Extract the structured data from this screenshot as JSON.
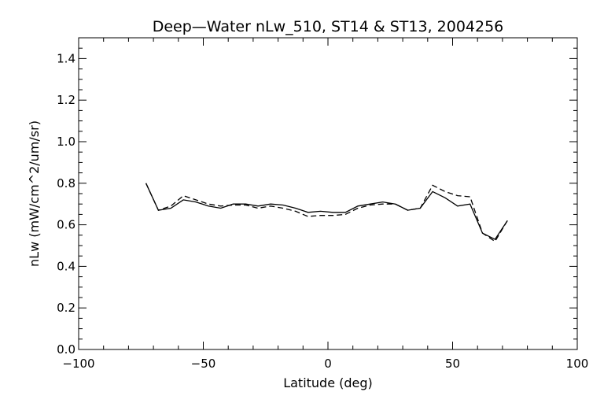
{
  "chart_data": {
    "type": "line",
    "title": "Deep—Water nLw_510, ST14 & ST13, 2004256",
    "xlabel": "Latitude (deg)",
    "ylabel": "nLw (mW/cm^2/um/sr)",
    "xlim": [
      -100,
      100
    ],
    "ylim": [
      0.0,
      1.5
    ],
    "xticks": [
      -100,
      -50,
      0,
      50,
      100
    ],
    "xtick_labels": [
      "−100",
      "−50",
      "0",
      "50",
      "100"
    ],
    "yticks": [
      0.0,
      0.2,
      0.4,
      0.6,
      0.8,
      1.0,
      1.2,
      1.4
    ],
    "ytick_labels": [
      "0.0",
      "0.2",
      "0.4",
      "0.6",
      "0.8",
      "1.0",
      "1.2",
      "1.4"
    ],
    "grid": false,
    "series": [
      {
        "style": "solid",
        "color": "#000000",
        "x": [
          -73,
          -68,
          -63,
          -58,
          -53,
          -48,
          -43,
          -38,
          -33,
          -28,
          -23,
          -18,
          -13,
          -8,
          -3,
          2,
          7,
          12,
          17,
          22,
          27,
          32,
          37,
          42,
          47,
          52,
          57,
          62,
          67,
          72
        ],
        "y": [
          0.8,
          0.67,
          0.68,
          0.72,
          0.71,
          0.69,
          0.68,
          0.7,
          0.7,
          0.69,
          0.7,
          0.695,
          0.68,
          0.66,
          0.665,
          0.66,
          0.66,
          0.69,
          0.7,
          0.71,
          0.7,
          0.67,
          0.68,
          0.76,
          0.73,
          0.69,
          0.7,
          0.56,
          0.53,
          0.62
        ]
      },
      {
        "style": "dashed",
        "color": "#000000",
        "x": [
          -73,
          -68,
          -63,
          -58,
          -53,
          -48,
          -43,
          -38,
          -33,
          -28,
          -23,
          -18,
          -13,
          -8,
          -3,
          2,
          7,
          12,
          17,
          22,
          27,
          32,
          37,
          42,
          47,
          52,
          57,
          62,
          67,
          72
        ],
        "y": [
          0.8,
          0.67,
          0.69,
          0.74,
          0.72,
          0.7,
          0.69,
          0.695,
          0.695,
          0.68,
          0.69,
          0.68,
          0.665,
          0.64,
          0.645,
          0.645,
          0.65,
          0.68,
          0.695,
          0.7,
          0.7,
          0.67,
          0.68,
          0.79,
          0.76,
          0.74,
          0.735,
          0.56,
          0.52,
          0.62
        ]
      }
    ]
  }
}
